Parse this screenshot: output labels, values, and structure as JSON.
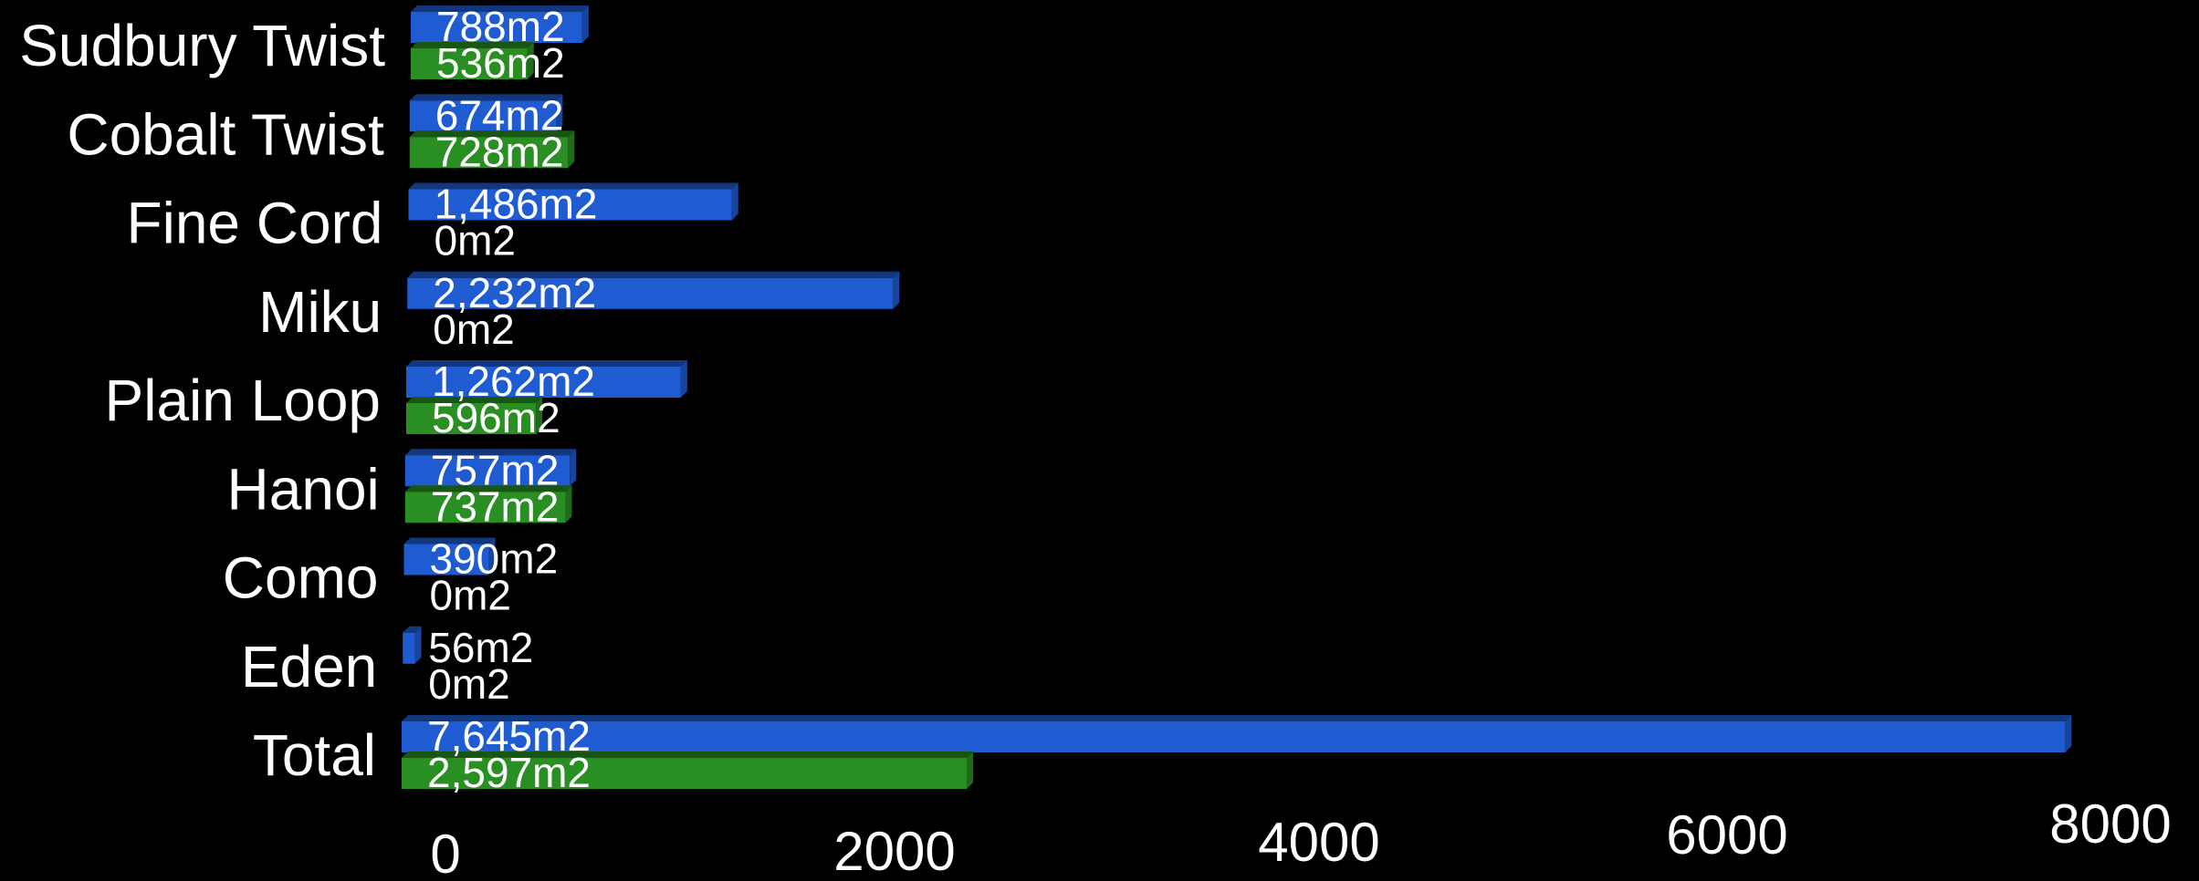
{
  "chart_data": {
    "type": "bar",
    "orientation": "horizontal",
    "style": "3d",
    "categories": [
      "Sudbury Twist",
      "Cobalt Twist",
      "Fine Cord",
      "Miku",
      "Plain Loop",
      "Hanoi",
      "Como",
      "Eden",
      "Total"
    ],
    "series": [
      {
        "color": "#1f5bd1",
        "values": [
          788,
          674,
          1486,
          2232,
          1262,
          757,
          390,
          56,
          7645
        ],
        "labels": [
          "788m2",
          "674m2",
          "1,486m2",
          "2,232m2",
          "1,262m2",
          "757m2",
          "390m2",
          "56m2",
          "7,645m2"
        ]
      },
      {
        "color": "#2a8f22",
        "values": [
          536,
          728,
          0,
          0,
          596,
          737,
          0,
          0,
          2597
        ],
        "labels": [
          "536m2",
          "728m2",
          "0m2",
          "0m2",
          "596m2",
          "737m2",
          "0m2",
          "0m2",
          "2,597m2"
        ]
      }
    ],
    "xticks": [
      "0",
      "2000",
      "4000",
      "6000",
      "8000"
    ],
    "xlim": [
      0,
      8000
    ],
    "legend": "none",
    "grid": false,
    "background": "#000000"
  }
}
